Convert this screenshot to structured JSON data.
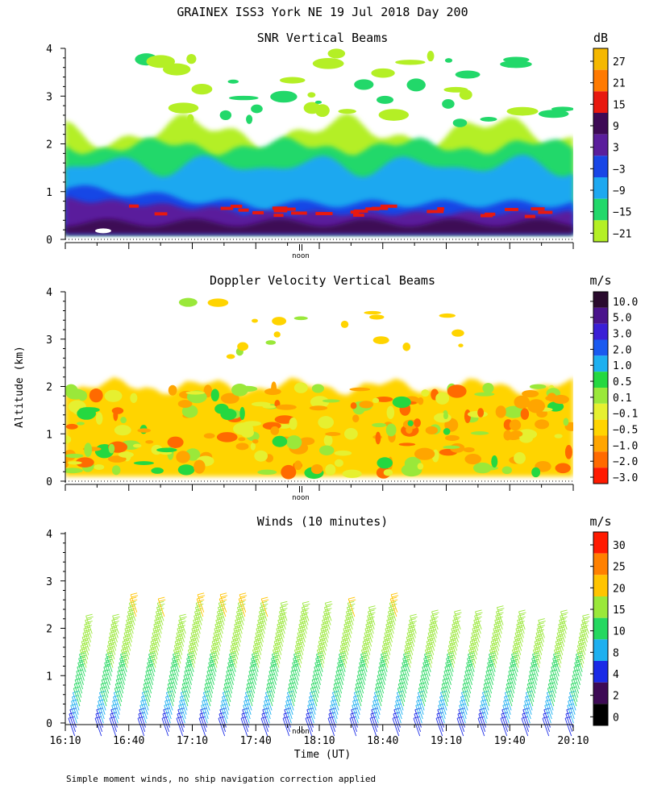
{
  "page_title": "GRAINEX ISS3 York NE  19 Jul 2018 Day 200",
  "footnote": "Simple moment winds, no ship navigation correction applied",
  "y_axis_label": "Altitude (km)",
  "chart_data": [
    {
      "id": "snr",
      "type": "heatmap",
      "title": "SNR Vertical Beams",
      "ylabel": "Altitude (km)",
      "ylim": [
        0,
        4
      ],
      "yticks": [
        "0",
        "1",
        "2",
        "3",
        "4"
      ],
      "xlim_hours": [
        16.1667,
        20.1667
      ],
      "noon_label": "noon",
      "colorbar": {
        "unit": "dB",
        "labels": [
          "27",
          "21",
          "15",
          "9",
          "3",
          "−3",
          "−9",
          "−15",
          "−21"
        ],
        "colors": [
          "#f5b800",
          "#ff7a00",
          "#e8190f",
          "#3d0a55",
          "#5a1e9c",
          "#1846e6",
          "#1ea8f0",
          "#22d86a",
          "#b4ef25"
        ]
      }
    },
    {
      "id": "doppler",
      "type": "heatmap",
      "title": "Doppler Velocity Vertical Beams",
      "ylabel": "Altitude (km)",
      "ylim": [
        0,
        4
      ],
      "yticks": [
        "0",
        "1",
        "2",
        "3",
        "4"
      ],
      "noon_label": "noon",
      "colorbar": {
        "unit": "m/s",
        "labels": [
          "10.0",
          "5.0",
          "3.0",
          "2.0",
          "1.0",
          "0.5",
          "0.1",
          "−0.1",
          "−0.5",
          "−1.0",
          "−2.0",
          "−3.0"
        ],
        "colors": [
          "#2a0b2e",
          "#4a148c",
          "#3a1fd6",
          "#1a5af0",
          "#1eb0f0",
          "#25d840",
          "#9ae83a",
          "#e6f030",
          "#ffd400",
          "#ffa500",
          "#ff6a00",
          "#ff1a00"
        ]
      }
    },
    {
      "id": "winds",
      "type": "barbs",
      "title": "Winds (10 minutes)",
      "xlabel": "Time (UT)",
      "ylabel": "Altitude (km)",
      "ylim": [
        0,
        4
      ],
      "yticks": [
        "0",
        "1",
        "2",
        "3",
        "4"
      ],
      "xticks": [
        "16:10",
        "16:40",
        "17:10",
        "17:40",
        "18:10",
        "18:40",
        "19:10",
        "19:40",
        "20:10"
      ],
      "noon_label": "noon",
      "colorbar": {
        "unit": "m/s",
        "labels": [
          "30",
          "25",
          "20",
          "15",
          "10",
          "8",
          "4",
          "2",
          "0"
        ],
        "colors": [
          "#ff1a00",
          "#ff8000",
          "#ffc400",
          "#9ae83a",
          "#25d860",
          "#1eb0f0",
          "#1a2ae6",
          "#3d0a55",
          "#000000"
        ]
      }
    }
  ]
}
